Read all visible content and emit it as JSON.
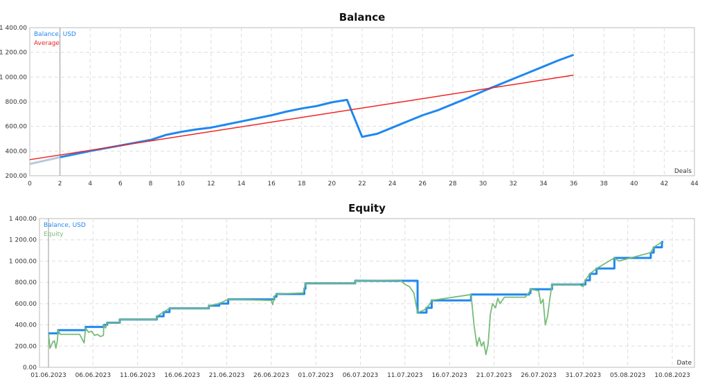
{
  "chart_data": [
    {
      "type": "line",
      "title": "Balance",
      "xlabel": "Deals",
      "xlim": [
        0,
        44
      ],
      "ylim": [
        200,
        1400
      ],
      "grid": true,
      "legend_placement": "top-left",
      "x_ticks": [
        "0",
        "2",
        "4",
        "6",
        "8",
        "10",
        "12",
        "14",
        "16",
        "18",
        "20",
        "22",
        "24",
        "26",
        "28",
        "30",
        "32",
        "34",
        "36",
        "38",
        "40",
        "42",
        "44"
      ],
      "y_ticks": [
        "200.00",
        "400.00",
        "600.00",
        "800.00",
        "1 000.00",
        "1 200.00",
        "1 400.00"
      ],
      "series": [
        {
          "name": "Balance, USD",
          "color": "#1e88f0",
          "x": [
            0,
            2,
            4,
            6,
            8,
            9,
            10,
            11,
            12,
            13,
            14,
            15,
            16,
            17,
            18,
            19,
            20,
            21,
            22,
            23,
            24,
            25,
            26,
            27,
            28,
            29,
            30,
            31,
            32,
            33,
            34,
            35,
            36
          ],
          "values": [
            295,
            350,
            400,
            445,
            490,
            530,
            555,
            575,
            590,
            615,
            640,
            665,
            690,
            720,
            745,
            765,
            795,
            815,
            515,
            540,
            590,
            640,
            690,
            730,
            780,
            830,
            885,
            935,
            985,
            1035,
            1085,
            1135,
            1180
          ]
        },
        {
          "name": "Average",
          "color": "#ee2222",
          "x": [
            0,
            36
          ],
          "values": [
            330,
            1015
          ]
        }
      ],
      "marker_x": 2
    },
    {
      "type": "line",
      "title": "Equity",
      "xlabel": "Date",
      "xlim": [
        "2023-06-01",
        "2023-08-10"
      ],
      "ylim": [
        0,
        1400
      ],
      "grid": true,
      "legend_placement": "top-left",
      "x_ticks": [
        "01.06.2023",
        "06.06.2023",
        "11.06.2023",
        "16.06.2023",
        "21.06.2023",
        "26.06.2023",
        "01.07.2023",
        "06.07.2023",
        "11.07.2023",
        "16.07.2023",
        "21.07.2023",
        "26.07.2023",
        "31.07.2023",
        "05.08.2023",
        "10.08.2023"
      ],
      "y_ticks": [
        "0.00",
        "200.00",
        "400.00",
        "600.00",
        "800.00",
        "1 000.00",
        "1 200.00",
        "1 400.00"
      ],
      "series": [
        {
          "name": "Balance, USD",
          "color": "#1e88f0",
          "step": true,
          "points": [
            [
              "2023-06-01T00:00",
              320
            ],
            [
              "2023-06-02T02:00",
              350
            ],
            [
              "2023-06-05T04:00",
              380
            ],
            [
              "2023-06-07T05:00",
              400
            ],
            [
              "2023-06-07T14:00",
              420
            ],
            [
              "2023-06-09T00:00",
              450
            ],
            [
              "2023-06-13T04:00",
              480
            ],
            [
              "2023-06-13T22:00",
              520
            ],
            [
              "2023-06-14T14:00",
              555
            ],
            [
              "2023-06-19T00:00",
              580
            ],
            [
              "2023-06-20T04:00",
              600
            ],
            [
              "2023-06-21T04:00",
              640
            ],
            [
              "2023-06-26T08:00",
              665
            ],
            [
              "2023-06-26T14:00",
              690
            ],
            [
              "2023-06-29T17:00",
              740
            ],
            [
              "2023-06-29T20:00",
              790
            ],
            [
              "2023-07-05T10:00",
              815
            ],
            [
              "2023-07-12T10:00",
              515
            ],
            [
              "2023-07-13T10:00",
              560
            ],
            [
              "2023-07-14T00:00",
              630
            ],
            [
              "2023-07-18T10:00",
              685
            ],
            [
              "2023-07-24T22:00",
              700
            ],
            [
              "2023-07-25T02:00",
              735
            ],
            [
              "2023-07-27T12:00",
              780
            ],
            [
              "2023-07-31T06:00",
              820
            ],
            [
              "2023-07-31T18:00",
              880
            ],
            [
              "2023-08-01T12:00",
              930
            ],
            [
              "2023-08-03T12:00",
              1030
            ],
            [
              "2023-08-07T14:00",
              1080
            ],
            [
              "2023-08-07T22:00",
              1130
            ],
            [
              "2023-08-08T20:00",
              1180
            ]
          ]
        },
        {
          "name": "Equity",
          "color": "#77bb77",
          "points": [
            [
              "2023-06-01T00:00",
              320
            ],
            [
              "2023-06-01T04:00",
              180
            ],
            [
              "2023-06-01T12:00",
              240
            ],
            [
              "2023-06-01T16:00",
              250
            ],
            [
              "2023-06-01T20:00",
              180
            ],
            [
              "2023-06-02T00:00",
              250
            ],
            [
              "2023-06-02T02:00",
              350
            ],
            [
              "2023-06-02T08:00",
              310
            ],
            [
              "2023-06-04T12:00",
              310
            ],
            [
              "2023-06-05T00:00",
              230
            ],
            [
              "2023-06-05T04:00",
              370
            ],
            [
              "2023-06-05T12:00",
              330
            ],
            [
              "2023-06-05T20:00",
              340
            ],
            [
              "2023-06-06T04:00",
              300
            ],
            [
              "2023-06-06T12:00",
              310
            ],
            [
              "2023-06-06T20:00",
              290
            ],
            [
              "2023-06-07T04:00",
              300
            ],
            [
              "2023-06-07T05:00",
              400
            ],
            [
              "2023-06-07T10:00",
              370
            ],
            [
              "2023-06-07T14:00",
              420
            ],
            [
              "2023-06-09T00:00",
              420
            ],
            [
              "2023-06-09T00:01",
              450
            ],
            [
              "2023-06-13T04:00",
              450
            ],
            [
              "2023-06-13T04:01",
              480
            ],
            [
              "2023-06-13T22:00",
              520
            ],
            [
              "2023-06-14T14:00",
              555
            ],
            [
              "2023-06-19T00:00",
              555
            ],
            [
              "2023-06-19T00:01",
              580
            ],
            [
              "2023-06-20T04:00",
              600
            ],
            [
              "2023-06-21T04:00",
              640
            ],
            [
              "2023-06-26T00:00",
              630
            ],
            [
              "2023-06-26T04:00",
              590
            ],
            [
              "2023-06-26T08:00",
              665
            ],
            [
              "2023-06-26T14:00",
              690
            ],
            [
              "2023-06-29T14:00",
              700
            ],
            [
              "2023-06-29T20:00",
              790
            ],
            [
              "2023-07-05T10:00",
              790
            ],
            [
              "2023-07-05T10:01",
              815
            ],
            [
              "2023-07-10T12:00",
              820
            ],
            [
              "2023-07-11T00:00",
              780
            ],
            [
              "2023-07-11T12:00",
              760
            ],
            [
              "2023-07-12T00:00",
              700
            ],
            [
              "2023-07-12T10:00",
              515
            ],
            [
              "2023-07-13T04:00",
              540
            ],
            [
              "2023-07-13T10:00",
              560
            ],
            [
              "2023-07-13T18:00",
              590
            ],
            [
              "2023-07-14T00:00",
              630
            ],
            [
              "2023-07-18T10:00",
              685
            ],
            [
              "2023-07-18T18:00",
              400
            ],
            [
              "2023-07-19T02:00",
              200
            ],
            [
              "2023-07-19T08:00",
              280
            ],
            [
              "2023-07-19T14:00",
              200
            ],
            [
              "2023-07-19T20:00",
              240
            ],
            [
              "2023-07-20T02:00",
              120
            ],
            [
              "2023-07-20T08:00",
              220
            ],
            [
              "2023-07-20T14:00",
              500
            ],
            [
              "2023-07-20T20:00",
              600
            ],
            [
              "2023-07-21T04:00",
              560
            ],
            [
              "2023-07-21T10:00",
              650
            ],
            [
              "2023-07-21T16:00",
              600
            ],
            [
              "2023-07-22T04:00",
              660
            ],
            [
              "2023-07-24T12:00",
              660
            ],
            [
              "2023-07-24T22:00",
              700
            ],
            [
              "2023-07-25T02:00",
              735
            ],
            [
              "2023-07-26T00:00",
              720
            ],
            [
              "2023-07-26T06:00",
              600
            ],
            [
              "2023-07-26T12:00",
              640
            ],
            [
              "2023-07-26T18:00",
              400
            ],
            [
              "2023-07-27T00:00",
              480
            ],
            [
              "2023-07-27T06:00",
              640
            ],
            [
              "2023-07-27T12:00",
              780
            ],
            [
              "2023-07-30T12:00",
              780
            ],
            [
              "2023-07-31T00:00",
              760
            ],
            [
              "2023-07-31T06:00",
              820
            ],
            [
              "2023-07-31T18:00",
              880
            ],
            [
              "2023-08-01T12:00",
              930
            ],
            [
              "2023-08-03T12:00",
              1030
            ],
            [
              "2023-08-04T00:00",
              1000
            ],
            [
              "2023-08-07T14:00",
              1080
            ],
            [
              "2023-08-07T22:00",
              1130
            ],
            [
              "2023-08-08T20:00",
              1180
            ]
          ]
        }
      ],
      "marker_x": "2023-06-01"
    }
  ]
}
